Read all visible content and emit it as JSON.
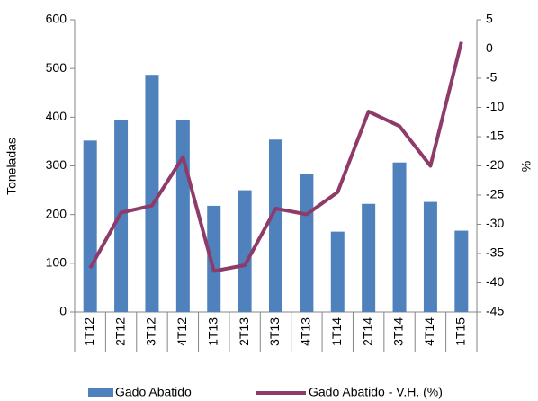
{
  "chart_data": {
    "type": "bar",
    "categories": [
      "1T12",
      "2T12",
      "3T12",
      "4T12",
      "1T13",
      "2T13",
      "3T13",
      "4T13",
      "1T14",
      "2T14",
      "3T14",
      "4T14",
      "1T15"
    ],
    "series": [
      {
        "name": "Gado Abatido",
        "type": "bar",
        "color": "#4f81bd",
        "values": [
          352,
          395,
          487,
          395,
          218,
          250,
          354,
          283,
          165,
          222,
          307,
          226,
          167
        ]
      },
      {
        "name": "Gado Abatido - V.H. (%)",
        "type": "line",
        "axis": "y2",
        "color": "#8e3b6a",
        "values": [
          -37.5,
          -28,
          -26.8,
          -18.5,
          -38,
          -37,
          -27.3,
          -28.3,
          -24.5,
          -10.7,
          -13.2,
          -20,
          1.2
        ]
      }
    ],
    "ylabel": "Toneladas",
    "y2label": "%",
    "ylim": [
      0,
      600
    ],
    "yticks": [
      0,
      100,
      200,
      300,
      400,
      500,
      600
    ],
    "y2lim": [
      -45,
      5
    ],
    "y2ticks": [
      -45,
      -40,
      -35,
      -30,
      -25,
      -20,
      -15,
      -10,
      -5,
      0,
      5
    ],
    "legend": "bottom"
  }
}
